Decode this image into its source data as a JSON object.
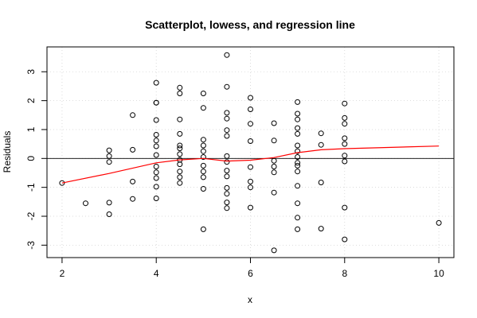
{
  "chart_data": {
    "type": "scatter",
    "title": "Scatterplot, lowess, and regression line",
    "xlabel": "x",
    "ylabel": "Residuals",
    "xlim": [
      1.68,
      10.32
    ],
    "ylim": [
      -3.43,
      3.86
    ],
    "x_ticks": [
      2,
      4,
      6,
      8,
      10
    ],
    "y_ticks": [
      -3,
      -2,
      -1,
      0,
      1,
      2,
      3
    ],
    "grid": true,
    "reference_line_y": 0,
    "colors": {
      "points": "#000000",
      "lowess": "#ff0000",
      "regression": "#000000",
      "grid": "#d3d3d3"
    },
    "points": [
      [
        2,
        -0.85
      ],
      [
        2.5,
        -1.55
      ],
      [
        3,
        0.28
      ],
      [
        3,
        0.08
      ],
      [
        3,
        -0.12
      ],
      [
        3,
        -1.53
      ],
      [
        3,
        -1.93
      ],
      [
        3.5,
        1.5
      ],
      [
        3.5,
        0.3
      ],
      [
        3.5,
        -0.8
      ],
      [
        3.5,
        -1.4
      ],
      [
        4,
        2.62
      ],
      [
        4,
        1.93
      ],
      [
        4,
        1.93
      ],
      [
        4,
        1.33
      ],
      [
        4,
        0.82
      ],
      [
        4,
        0.62
      ],
      [
        4,
        0.42
      ],
      [
        4,
        0.12
      ],
      [
        4,
        -0.28
      ],
      [
        4,
        -0.48
      ],
      [
        4,
        -0.68
      ],
      [
        4,
        -0.98
      ],
      [
        4,
        -1.38
      ],
      [
        4.5,
        2.45
      ],
      [
        4.5,
        2.25
      ],
      [
        4.5,
        1.35
      ],
      [
        4.5,
        0.85
      ],
      [
        4.5,
        0.45
      ],
      [
        4.5,
        0.35
      ],
      [
        4.5,
        0.15
      ],
      [
        4.5,
        -0.05
      ],
      [
        4.5,
        -0.2
      ],
      [
        4.5,
        -0.45
      ],
      [
        4.5,
        -0.65
      ],
      [
        4.5,
        -0.85
      ],
      [
        5,
        2.25
      ],
      [
        5,
        1.75
      ],
      [
        5,
        0.65
      ],
      [
        5,
        0.45
      ],
      [
        5,
        0.25
      ],
      [
        5,
        0.05
      ],
      [
        5,
        -0.25
      ],
      [
        5,
        -0.45
      ],
      [
        5,
        -0.65
      ],
      [
        5,
        -1.05
      ],
      [
        5,
        -2.45
      ],
      [
        5.5,
        3.58
      ],
      [
        5.5,
        2.48
      ],
      [
        5.5,
        1.58
      ],
      [
        5.5,
        1.38
      ],
      [
        5.5,
        0.98
      ],
      [
        5.5,
        0.78
      ],
      [
        5.5,
        0.08
      ],
      [
        5.5,
        -0.12
      ],
      [
        5.5,
        -0.42
      ],
      [
        5.5,
        -0.62
      ],
      [
        5.5,
        -1.02
      ],
      [
        5.5,
        -1.22
      ],
      [
        5.5,
        -1.52
      ],
      [
        5.5,
        -1.72
      ],
      [
        6,
        2.1
      ],
      [
        6,
        1.7
      ],
      [
        6,
        1.2
      ],
      [
        6,
        0.6
      ],
      [
        6,
        -0.3
      ],
      [
        6,
        -0.8
      ],
      [
        6,
        -1.0
      ],
      [
        6,
        -1.7
      ],
      [
        6.5,
        1.22
      ],
      [
        6.5,
        0.62
      ],
      [
        6.5,
        -0.08
      ],
      [
        6.5,
        -0.28
      ],
      [
        6.5,
        -0.48
      ],
      [
        6.5,
        -1.18
      ],
      [
        6.5,
        -3.18
      ],
      [
        7,
        1.95
      ],
      [
        7,
        1.55
      ],
      [
        7,
        1.35
      ],
      [
        7,
        1.05
      ],
      [
        7,
        0.85
      ],
      [
        7,
        0.45
      ],
      [
        7,
        0.25
      ],
      [
        7,
        0.05
      ],
      [
        7,
        -0.15
      ],
      [
        7,
        -0.25
      ],
      [
        7,
        -0.45
      ],
      [
        7,
        -0.95
      ],
      [
        7,
        -1.55
      ],
      [
        7,
        -2.05
      ],
      [
        7,
        -2.45
      ],
      [
        7.5,
        0.87
      ],
      [
        7.5,
        0.47
      ],
      [
        7.5,
        -0.83
      ],
      [
        7.5,
        -2.43
      ],
      [
        8,
        1.9
      ],
      [
        8,
        1.4
      ],
      [
        8,
        1.2
      ],
      [
        8,
        0.7
      ],
      [
        8,
        0.5
      ],
      [
        8,
        0.1
      ],
      [
        8,
        -0.1
      ],
      [
        8,
        -1.7
      ],
      [
        8,
        -2.8
      ],
      [
        10,
        -2.23
      ]
    ],
    "lowess": [
      [
        2,
        -0.85
      ],
      [
        3,
        -0.52
      ],
      [
        4,
        -0.15
      ],
      [
        4.5,
        -0.05
      ],
      [
        5,
        0.0
      ],
      [
        5.5,
        -0.09
      ],
      [
        6,
        -0.06
      ],
      [
        6.5,
        0.03
      ],
      [
        7,
        0.2
      ],
      [
        7.5,
        0.3
      ],
      [
        8,
        0.34
      ],
      [
        10,
        0.43
      ]
    ]
  }
}
